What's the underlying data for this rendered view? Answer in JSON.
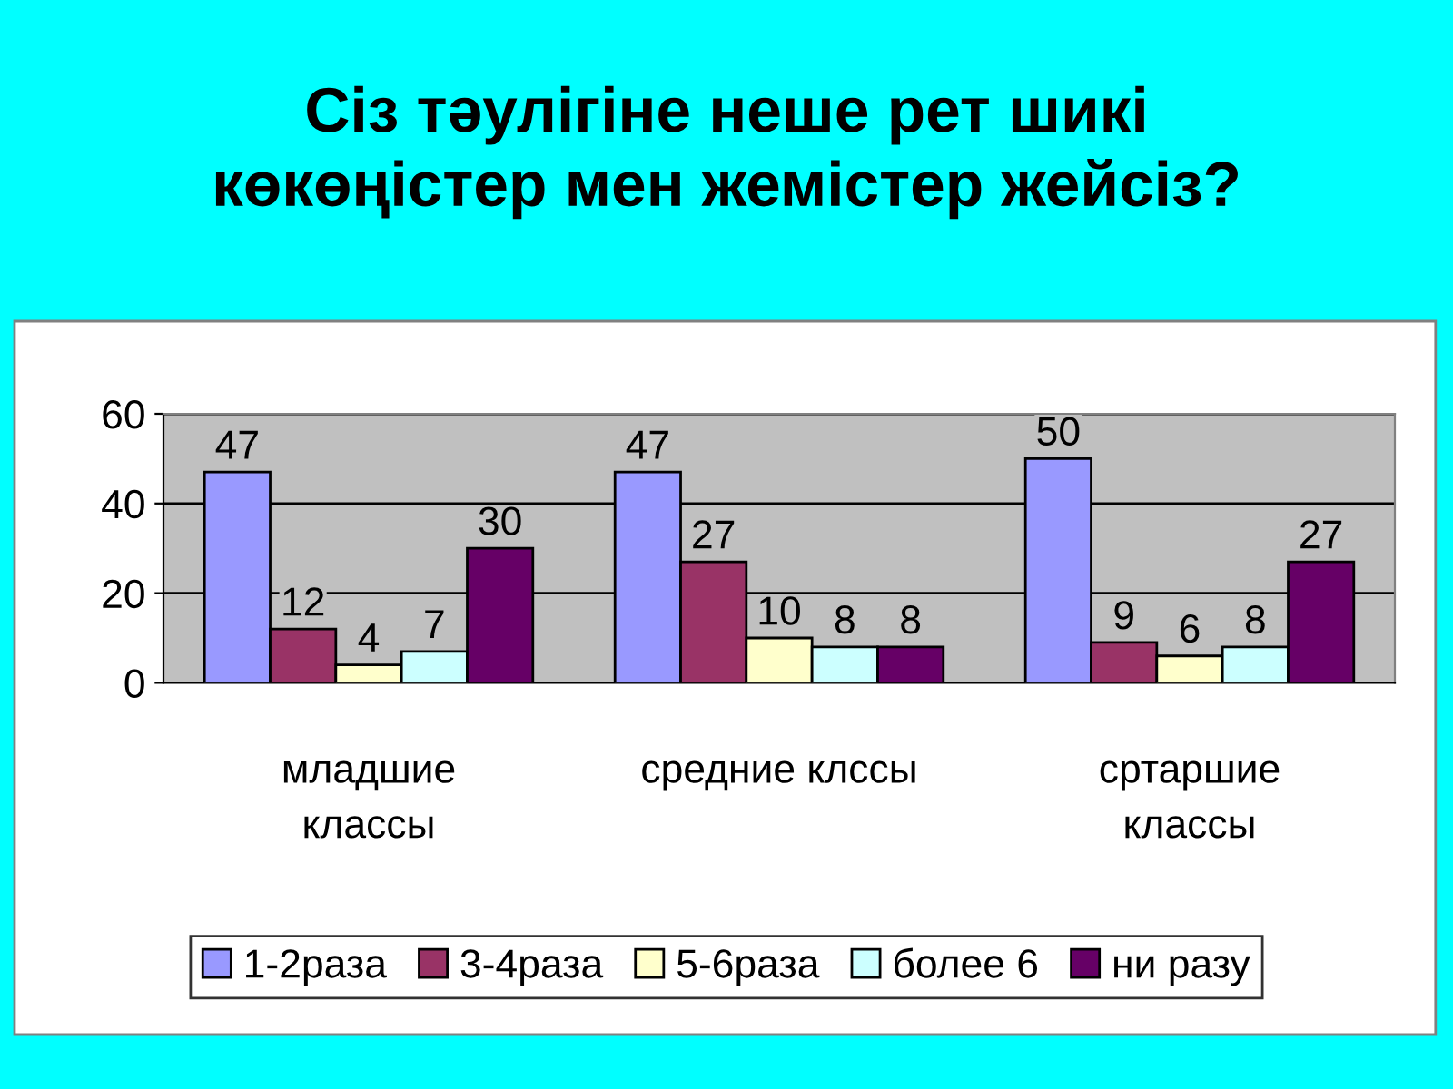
{
  "chart_data": {
    "type": "bar",
    "title": "Сіз тәулігіне неше рет шикі\nкөкөңістер мен жемістер жейсіз?",
    "categories": [
      "младшие\nклассы",
      "средние клссы",
      "сртаршие\nклассы"
    ],
    "series": [
      {
        "name": "1-2раза",
        "color": "#9999ff",
        "values": [
          47,
          47,
          50
        ]
      },
      {
        "name": "3-4раза",
        "color": "#993366",
        "values": [
          12,
          27,
          9
        ]
      },
      {
        "name": "5-6раза",
        "color": "#ffffcc",
        "values": [
          4,
          10,
          6
        ]
      },
      {
        "name": "более 6",
        "color": "#ccffff",
        "values": [
          7,
          8,
          8
        ]
      },
      {
        "name": "ни разу",
        "color": "#660066",
        "values": [
          30,
          8,
          27
        ]
      }
    ],
    "ylim": [
      0,
      60
    ],
    "yticks": [
      0,
      20,
      40,
      60
    ],
    "grid": "y",
    "legend": "bottom",
    "data_labels": true
  }
}
